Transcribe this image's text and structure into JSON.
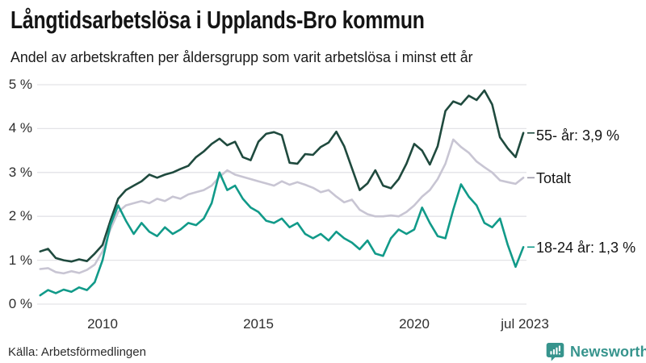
{
  "header": {
    "title": "Långtidsarbetslösa i Upplands-Bro kommun",
    "subtitle": "Andel av arbetskraften per åldersgrupp som varit arbetslösa i minst ett år"
  },
  "chart_data": {
    "type": "line",
    "title": "Långtidsarbetslösa i Upplands-Bro kommun",
    "subtitle": "Andel av arbetskraften per åldersgrupp som varit arbetslösa i minst ett år",
    "x_unit": "decimal_year (monthly data sampled quarterly)",
    "xlim": [
      2008.0,
      2023.58
    ],
    "ylim": [
      0,
      5
    ],
    "grid": true,
    "legend_position": "right-end-labels",
    "y_ticks": [
      "0 %",
      "1 %",
      "2 %",
      "3 %",
      "4 %",
      "5 %"
    ],
    "x_ticks": [
      {
        "label": "2010",
        "year": 2010
      },
      {
        "label": "2015",
        "year": 2015
      },
      {
        "label": "2020",
        "year": 2020
      },
      {
        "label": "jul 2023",
        "year": 2023.5
      }
    ],
    "x": [
      2008.0,
      2008.25,
      2008.5,
      2008.75,
      2009.0,
      2009.25,
      2009.5,
      2009.75,
      2010.0,
      2010.25,
      2010.5,
      2010.75,
      2011.0,
      2011.25,
      2011.5,
      2011.75,
      2012.0,
      2012.25,
      2012.5,
      2012.75,
      2013.0,
      2013.25,
      2013.5,
      2013.75,
      2014.0,
      2014.25,
      2014.5,
      2014.75,
      2015.0,
      2015.25,
      2015.5,
      2015.75,
      2016.0,
      2016.25,
      2016.5,
      2016.75,
      2017.0,
      2017.25,
      2017.5,
      2017.75,
      2018.0,
      2018.25,
      2018.5,
      2018.75,
      2019.0,
      2019.25,
      2019.5,
      2019.75,
      2020.0,
      2020.25,
      2020.5,
      2020.75,
      2021.0,
      2021.25,
      2021.5,
      2021.75,
      2022.0,
      2022.25,
      2022.5,
      2022.75,
      2023.0,
      2023.25,
      2023.5
    ],
    "series": [
      {
        "name": "55- år",
        "end_label": "55- år: 3,9 %",
        "end_value_pct": 3.9,
        "color": "#1f4a3e",
        "values": [
          1.2,
          1.26,
          1.05,
          1.0,
          0.97,
          1.02,
          0.98,
          1.15,
          1.35,
          1.9,
          2.4,
          2.6,
          2.7,
          2.8,
          2.95,
          2.88,
          2.95,
          3.0,
          3.08,
          3.15,
          3.35,
          3.48,
          3.65,
          3.77,
          3.62,
          3.7,
          3.35,
          3.28,
          3.7,
          3.88,
          3.92,
          3.85,
          3.22,
          3.2,
          3.42,
          3.4,
          3.58,
          3.68,
          3.93,
          3.6,
          3.1,
          2.6,
          2.75,
          3.05,
          2.7,
          2.64,
          2.85,
          3.2,
          3.65,
          3.5,
          3.18,
          3.6,
          4.4,
          4.62,
          4.55,
          4.75,
          4.65,
          4.87,
          4.55,
          3.8,
          3.55,
          3.35,
          3.9
        ]
      },
      {
        "name": "Totalt",
        "end_label": "Totalt",
        "end_value_pct": 2.9,
        "color": "#c8c5d3",
        "values": [
          0.8,
          0.82,
          0.73,
          0.7,
          0.75,
          0.71,
          0.78,
          0.9,
          1.2,
          1.7,
          2.1,
          2.25,
          2.3,
          2.35,
          2.3,
          2.4,
          2.35,
          2.45,
          2.4,
          2.5,
          2.55,
          2.6,
          2.7,
          2.9,
          3.05,
          2.95,
          2.9,
          2.85,
          2.8,
          2.75,
          2.7,
          2.8,
          2.72,
          2.78,
          2.72,
          2.65,
          2.55,
          2.6,
          2.45,
          2.32,
          2.38,
          2.15,
          2.05,
          2.0,
          2.0,
          2.02,
          2.0,
          2.1,
          2.25,
          2.45,
          2.6,
          2.85,
          3.2,
          3.75,
          3.58,
          3.45,
          3.25,
          3.12,
          3.0,
          2.82,
          2.78,
          2.74,
          2.88
        ]
      },
      {
        "name": "18-24 år",
        "end_label": "18-24 år: 1,3 %",
        "end_value_pct": 1.3,
        "color": "#119a89",
        "values": [
          0.2,
          0.32,
          0.25,
          0.33,
          0.28,
          0.38,
          0.32,
          0.5,
          1.0,
          1.8,
          2.25,
          1.9,
          1.6,
          1.85,
          1.65,
          1.55,
          1.75,
          1.6,
          1.7,
          1.85,
          1.8,
          1.95,
          2.3,
          3.0,
          2.6,
          2.7,
          2.4,
          2.2,
          2.1,
          1.9,
          1.85,
          1.95,
          1.75,
          1.85,
          1.6,
          1.5,
          1.6,
          1.45,
          1.65,
          1.5,
          1.4,
          1.25,
          1.45,
          1.15,
          1.1,
          1.5,
          1.7,
          1.6,
          1.7,
          2.2,
          1.85,
          1.55,
          1.5,
          2.15,
          2.73,
          2.45,
          2.25,
          1.85,
          1.75,
          1.95,
          1.35,
          0.85,
          1.3
        ]
      }
    ]
  },
  "footer": {
    "source": "Källa: Arbetsförmedlingen",
    "brand": "Newsworthy"
  },
  "colors": {
    "background": "#ffffff",
    "gridline": "#e3e3e7",
    "series_55": "#1f4a3e",
    "series_total": "#c8c5d3",
    "series_18_24": "#119a89",
    "text": "#141414",
    "tick_text": "#2e2e2e",
    "brand_teal": "#37948d"
  }
}
